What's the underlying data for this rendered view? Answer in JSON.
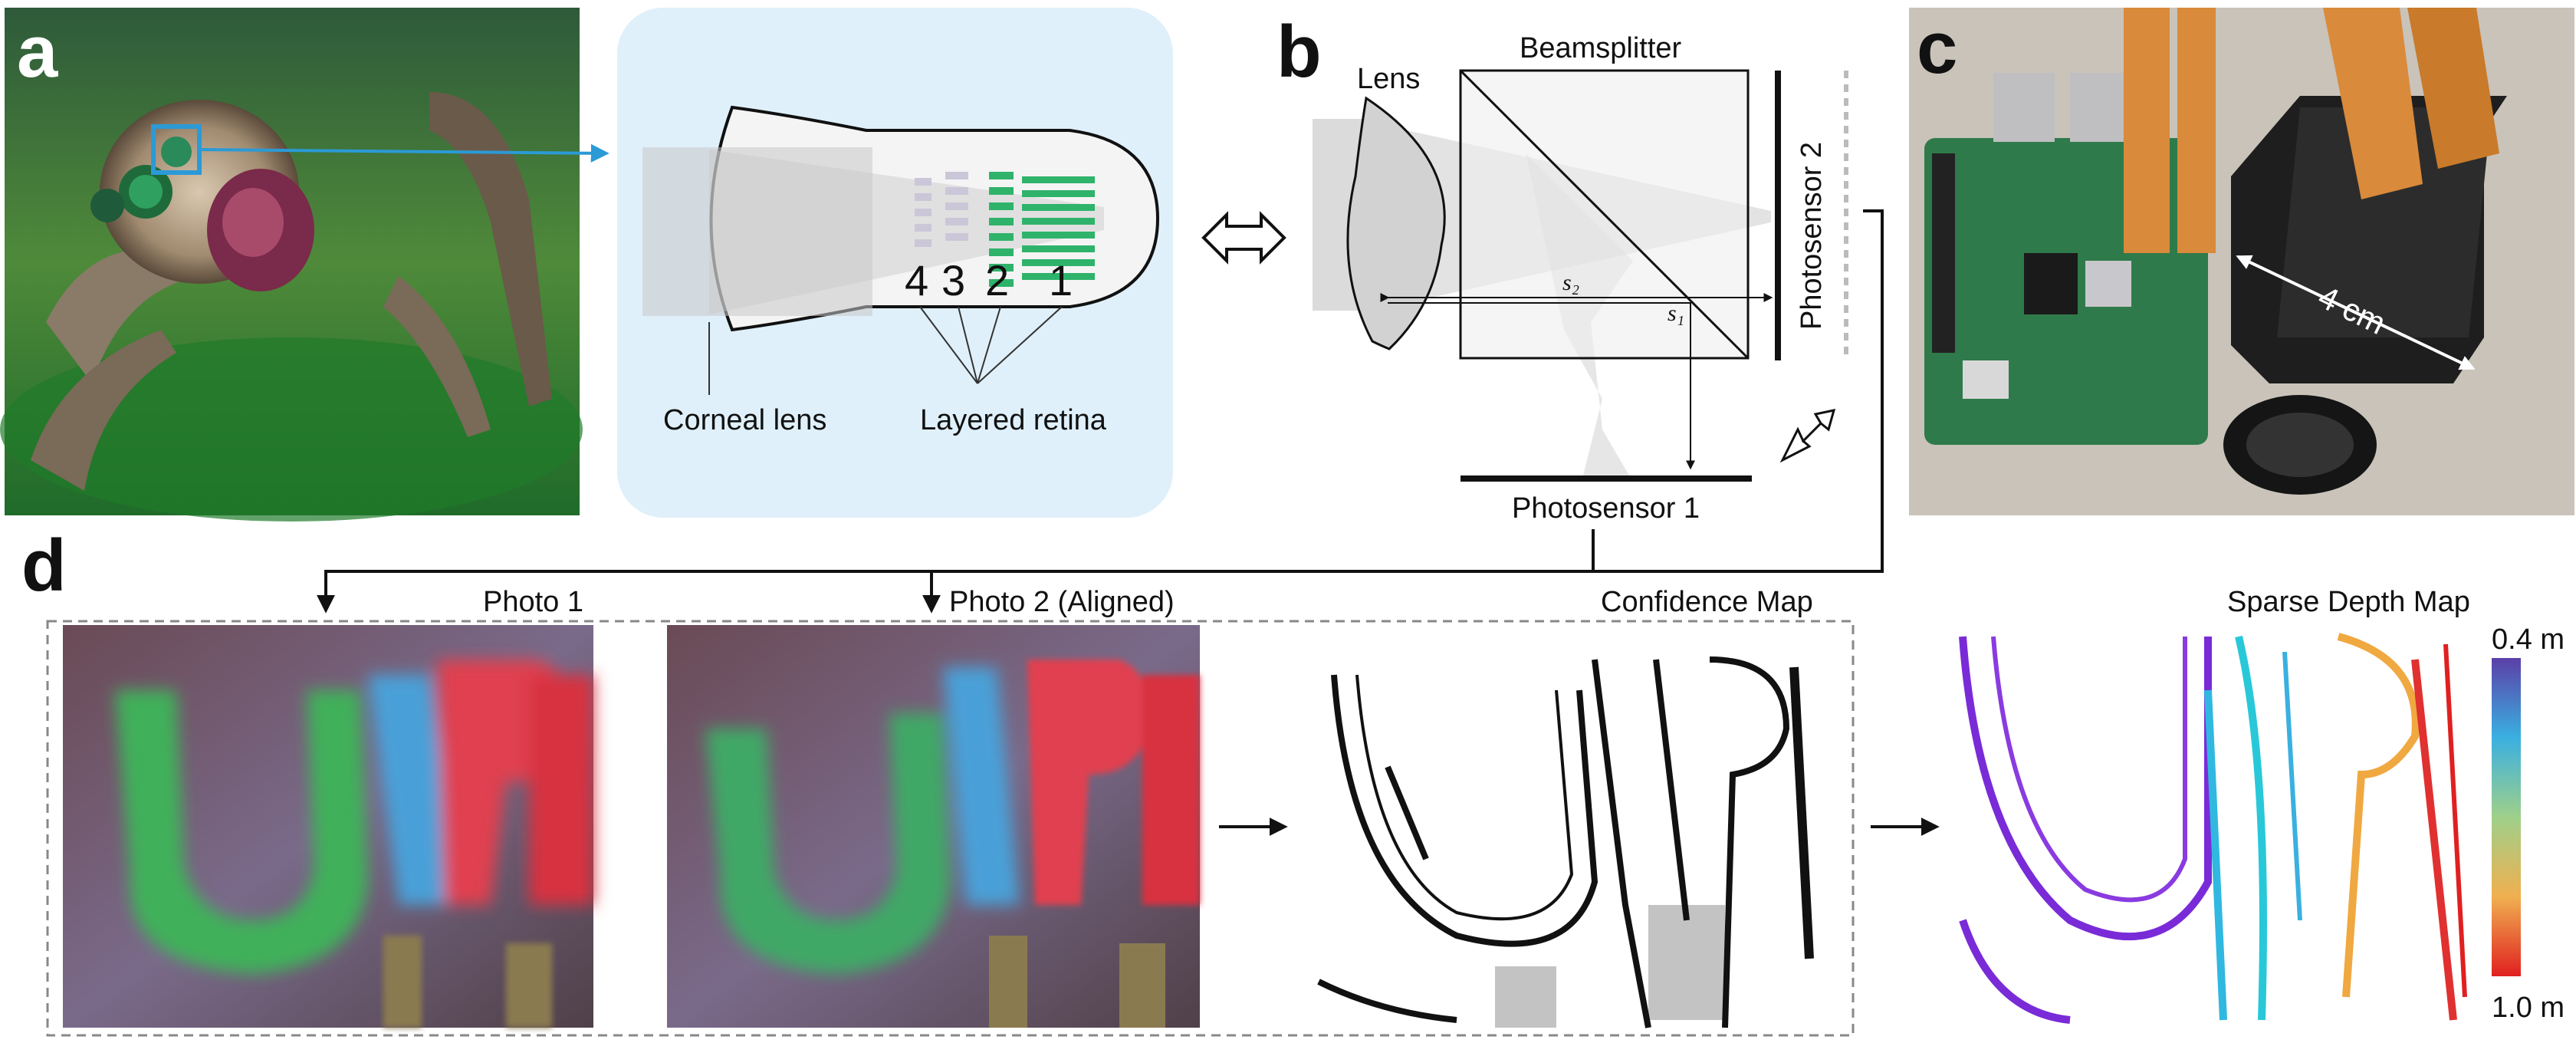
{
  "panels": {
    "a": {
      "letter": "a",
      "labels": {
        "corneal_lens": "Corneal lens",
        "layered_retina": "Layered retina"
      },
      "retina_layers": [
        "4",
        "3",
        "2",
        "1"
      ]
    },
    "b": {
      "letter": "b",
      "labels": {
        "lens": "Lens",
        "beamsplitter": "Beamsplitter",
        "photosensor_1": "Photosensor 1",
        "photosensor_2": "Photosensor 2",
        "s2": "s₂",
        "s1": "s₁"
      }
    },
    "c": {
      "letter": "c",
      "labels": {
        "dimension": "4 cm"
      }
    },
    "d": {
      "letter": "d",
      "labels": {
        "photo_1": "Photo 1",
        "photo_2": "Photo 2 (Aligned)",
        "confidence_map": "Confidence Map",
        "sparse_depth_map": "Sparse Depth Map"
      },
      "colorbar": {
        "top": "0.4 m",
        "bottom": "1.0 m"
      }
    }
  },
  "colors": {
    "accent_blue": "#2b9ad6",
    "retina_green": "#2fb36b",
    "panel_bg": "#dff0fa",
    "gray_beam": "#c8c8c8"
  }
}
